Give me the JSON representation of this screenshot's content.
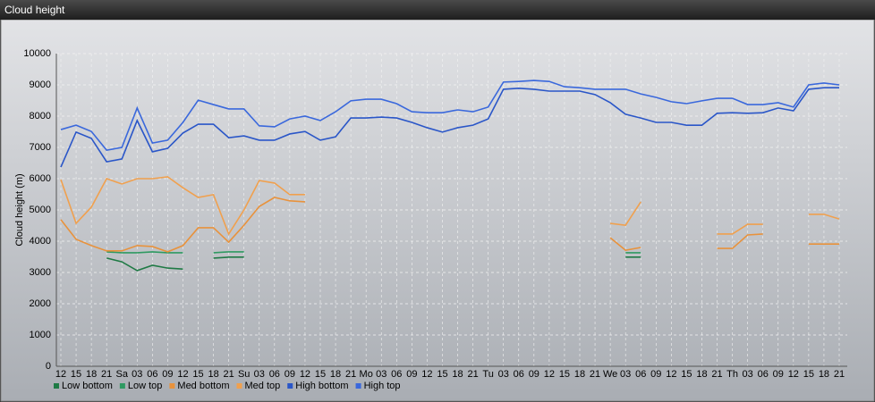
{
  "header": {
    "title": "Cloud height"
  },
  "chart_data": {
    "type": "line",
    "y_label": "Cloud height (m)",
    "categories": [
      "12",
      "15",
      "18",
      "21",
      "Sa",
      "03",
      "06",
      "09",
      "12",
      "15",
      "18",
      "21",
      "Su",
      "03",
      "06",
      "09",
      "12",
      "15",
      "18",
      "21",
      "Mo",
      "03",
      "06",
      "09",
      "12",
      "15",
      "18",
      "21",
      "Tu",
      "03",
      "06",
      "09",
      "12",
      "15",
      "18",
      "21",
      "We",
      "03",
      "06",
      "09",
      "12",
      "15",
      "18",
      "21",
      "Th",
      "03",
      "06",
      "09",
      "12",
      "15",
      "18",
      "21"
    ],
    "ylim": [
      0,
      10000
    ],
    "yticks": [
      0,
      1000,
      2000,
      3000,
      4000,
      5000,
      6000,
      7000,
      8000,
      9000,
      10000
    ],
    "grid": true,
    "series": [
      {
        "name": "Low bottom",
        "color": "#1f7a45",
        "values": [
          null,
          null,
          null,
          3460,
          3340,
          3060,
          3230,
          3140,
          3110,
          null,
          3460,
          3490,
          3490,
          null,
          null,
          null,
          null,
          null,
          null,
          null,
          null,
          null,
          null,
          null,
          null,
          null,
          null,
          null,
          null,
          null,
          null,
          null,
          null,
          null,
          null,
          null,
          null,
          3490,
          3490,
          null,
          null,
          null,
          null,
          null,
          null,
          null,
          null,
          null,
          null,
          null,
          null,
          null
        ]
      },
      {
        "name": "Low top",
        "color": "#2f9a62",
        "values": [
          null,
          null,
          null,
          3660,
          3630,
          3630,
          3660,
          3630,
          3630,
          null,
          3630,
          3660,
          3660,
          null,
          null,
          null,
          null,
          null,
          null,
          null,
          null,
          null,
          null,
          null,
          null,
          null,
          null,
          null,
          null,
          null,
          null,
          null,
          null,
          null,
          null,
          null,
          null,
          3630,
          3630,
          null,
          null,
          null,
          null,
          null,
          null,
          null,
          null,
          null,
          null,
          null,
          null,
          null
        ]
      },
      {
        "name": "Med bottom",
        "color": "#e8923c",
        "values": [
          4690,
          4060,
          3860,
          3690,
          3690,
          3860,
          3830,
          3660,
          3860,
          4430,
          4430,
          3970,
          4510,
          5110,
          5400,
          5290,
          5260,
          null,
          null,
          null,
          null,
          null,
          null,
          null,
          null,
          null,
          null,
          null,
          null,
          null,
          null,
          null,
          null,
          null,
          null,
          null,
          4110,
          3710,
          3800,
          null,
          null,
          null,
          null,
          3770,
          3770,
          4200,
          4230,
          null,
          null,
          3910,
          3910,
          3910
        ]
      },
      {
        "name": "Med top",
        "color": "#f0a04e",
        "values": [
          5970,
          4570,
          5090,
          6000,
          5830,
          6000,
          6000,
          6060,
          5710,
          5400,
          5490,
          4230,
          5000,
          5940,
          5860,
          5490,
          5490,
          null,
          null,
          null,
          null,
          null,
          null,
          null,
          null,
          null,
          null,
          null,
          null,
          null,
          null,
          null,
          null,
          null,
          null,
          null,
          4570,
          4510,
          5260,
          null,
          null,
          null,
          null,
          4230,
          4230,
          4540,
          4540,
          null,
          null,
          4860,
          4860,
          4710
        ]
      },
      {
        "name": "High bottom",
        "color": "#2a56c8",
        "values": [
          6370,
          7490,
          7290,
          6540,
          6630,
          7860,
          6860,
          6970,
          7460,
          7740,
          7740,
          7310,
          7370,
          7230,
          7230,
          7430,
          7510,
          7230,
          7340,
          7940,
          7940,
          7970,
          7940,
          7800,
          7630,
          7490,
          7630,
          7710,
          7910,
          8860,
          8890,
          8860,
          8800,
          8800,
          8800,
          8690,
          8430,
          8060,
          7940,
          7800,
          7800,
          7710,
          7710,
          8090,
          8110,
          8090,
          8110,
          8260,
          8170,
          8860,
          8910,
          8910
        ]
      },
      {
        "name": "High top",
        "color": "#3a68dc",
        "values": [
          7570,
          7710,
          7510,
          6910,
          7000,
          8260,
          7140,
          7230,
          7800,
          8510,
          8370,
          8230,
          8230,
          7690,
          7660,
          7910,
          8000,
          7860,
          8140,
          8490,
          8540,
          8540,
          8400,
          8140,
          8110,
          8110,
          8200,
          8140,
          8290,
          9090,
          9110,
          9140,
          9110,
          8940,
          8910,
          8860,
          8860,
          8860,
          8710,
          8600,
          8460,
          8400,
          8490,
          8570,
          8570,
          8370,
          8370,
          8430,
          8290,
          9000,
          9060,
          9000
        ]
      }
    ]
  }
}
